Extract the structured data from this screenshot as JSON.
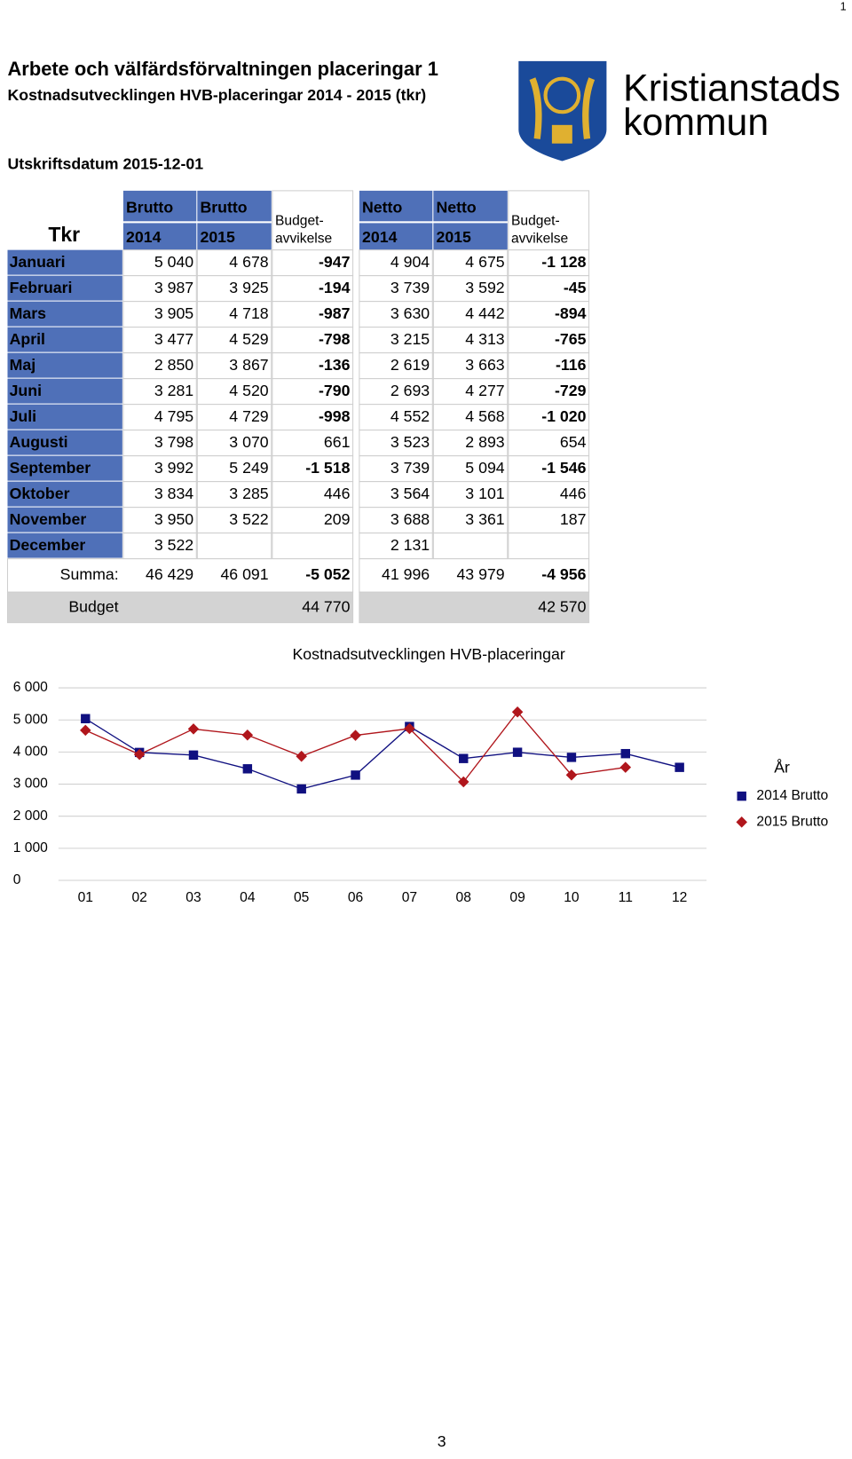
{
  "page_number_top": "1",
  "page_number_bottom": "3",
  "header": {
    "title": "Arbete och välfärdsförvaltningen placeringar 1",
    "subtitle": "Kostnadsutvecklingen HVB-placeringar 2014 - 2015 (tkr)",
    "print_date": "Utskriftsdatum 2015-12-01"
  },
  "logo": {
    "line1": "Kristianstads",
    "line2": "kommun"
  },
  "table": {
    "corner": "Tkr",
    "columns": [
      {
        "top": "Brutto",
        "bottom": "2014"
      },
      {
        "top": "Brutto",
        "bottom": "2015"
      },
      {
        "top": "Budget-",
        "bottom": "avvikelse"
      },
      {
        "top": "Netto",
        "bottom": "2014"
      },
      {
        "top": "Netto",
        "bottom": "2015"
      },
      {
        "top": "Budget-",
        "bottom": "avvikelse"
      }
    ],
    "rows": [
      [
        "Januari",
        "5 040",
        "4 678",
        "-947",
        "4 904",
        "4 675",
        "-1 128"
      ],
      [
        "Februari",
        "3 987",
        "3 925",
        "-194",
        "3 739",
        "3 592",
        "-45"
      ],
      [
        "Mars",
        "3 905",
        "4 718",
        "-987",
        "3 630",
        "4 442",
        "-894"
      ],
      [
        "April",
        "3 477",
        "4 529",
        "-798",
        "3 215",
        "4 313",
        "-765"
      ],
      [
        "Maj",
        "2 850",
        "3 867",
        "-136",
        "2 619",
        "3 663",
        "-116"
      ],
      [
        "Juni",
        "3 281",
        "4 520",
        "-790",
        "2 693",
        "4 277",
        "-729"
      ],
      [
        "Juli",
        "4 795",
        "4 729",
        "-998",
        "4 552",
        "4 568",
        "-1 020"
      ],
      [
        "Augusti",
        "3 798",
        "3 070",
        "661",
        "3 523",
        "2 893",
        "654"
      ],
      [
        "September",
        "3 992",
        "5 249",
        "-1 518",
        "3 739",
        "5 094",
        "-1 546"
      ],
      [
        "Oktober",
        "3 834",
        "3 285",
        "446",
        "3 564",
        "3 101",
        "446"
      ],
      [
        "November",
        "3 950",
        "3 522",
        "209",
        "3 688",
        "3 361",
        "187"
      ],
      [
        "December",
        "3 522",
        null,
        null,
        "2 131",
        null,
        null
      ]
    ],
    "sum": {
      "label": "Summa:",
      "values": [
        "46 429",
        "46 091",
        "-5 052",
        "41 996",
        "43 979",
        "-4 956"
      ]
    },
    "budget": {
      "label": "Budget",
      "values": [
        "44 770",
        "42 570"
      ]
    }
  },
  "chart_data": {
    "type": "line",
    "title": "Kostnadsutvecklingen HVB-placeringar",
    "categories": [
      "01",
      "02",
      "03",
      "04",
      "05",
      "06",
      "07",
      "08",
      "09",
      "10",
      "11",
      "12"
    ],
    "series": [
      {
        "name": "2014 Brutto",
        "color": "#101080",
        "marker": "square",
        "values": [
          5040,
          3987,
          3905,
          3477,
          2850,
          3281,
          4795,
          3798,
          3992,
          3834,
          3950,
          3522
        ]
      },
      {
        "name": "2015 Brutto",
        "color": "#b0161c",
        "marker": "diamond",
        "values": [
          4678,
          3925,
          4718,
          4529,
          3867,
          4520,
          4729,
          3070,
          5249,
          3285,
          3522,
          null
        ]
      }
    ],
    "ylim": [
      0,
      6000
    ],
    "yticks": [
      0,
      {
        "value": 1000,
        "label": "1 000"
      },
      {
        "value": 2000,
        "label": "2 000"
      },
      {
        "value": 3000,
        "label": "3 000"
      },
      {
        "value": 4000,
        "label": "4 000"
      },
      {
        "value": 5000,
        "label": "5 000"
      },
      {
        "value": 6000,
        "label": "6 000"
      }
    ],
    "grid": true,
    "legend_title": "År",
    "legend": "right"
  }
}
